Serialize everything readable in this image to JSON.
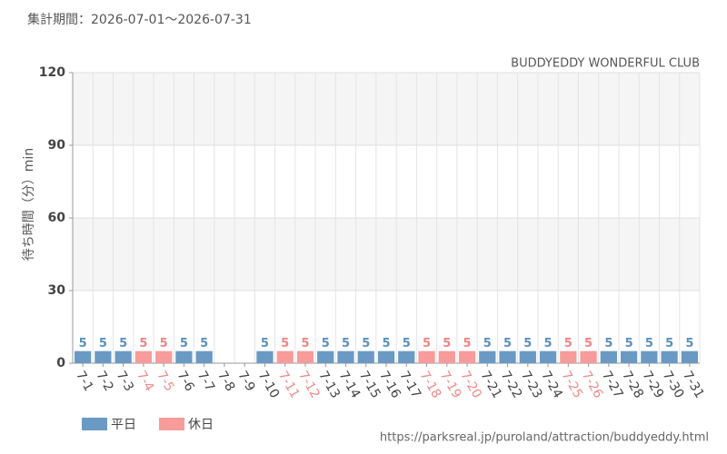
{
  "chart_data": {
    "type": "bar",
    "title": "集計期間：2026-07-01～2026-07-31",
    "subtitle": "BUDDYEDDY WONDERFUL CLUB",
    "y_label": "待ち時間（分）min",
    "source": "https://parksreal.jp/puroland/attraction/buddyeddy.html",
    "categories": [
      "7-1",
      "7-2",
      "7-3",
      "7-4",
      "7-5",
      "7-6",
      "7-7",
      "7-8",
      "7-9",
      "7-10",
      "7-11",
      "7-12",
      "7-13",
      "7-14",
      "7-15",
      "7-16",
      "7-17",
      "7-18",
      "7-19",
      "7-20",
      "7-21",
      "7-22",
      "7-23",
      "7-24",
      "7-25",
      "7-26",
      "7-27",
      "7-28",
      "7-29",
      "7-30",
      "7-31"
    ],
    "series": [
      {
        "name": "平日",
        "color": "#6a9ac4",
        "values": [
          5,
          5,
          5,
          null,
          null,
          5,
          5,
          null,
          null,
          5,
          null,
          null,
          5,
          5,
          5,
          5,
          5,
          null,
          null,
          null,
          5,
          5,
          5,
          5,
          null,
          null,
          5,
          5,
          5,
          5,
          5
        ]
      },
      {
        "name": "休日",
        "color": "#f79b9b",
        "values": [
          null,
          null,
          null,
          5,
          5,
          null,
          null,
          null,
          null,
          null,
          5,
          5,
          null,
          null,
          null,
          null,
          null,
          5,
          5,
          5,
          null,
          null,
          null,
          null,
          5,
          5,
          null,
          null,
          null,
          null,
          null
        ]
      }
    ],
    "ylim": [
      0,
      120
    ],
    "yticks": [
      0,
      30,
      60,
      90,
      120
    ],
    "grid": true
  }
}
